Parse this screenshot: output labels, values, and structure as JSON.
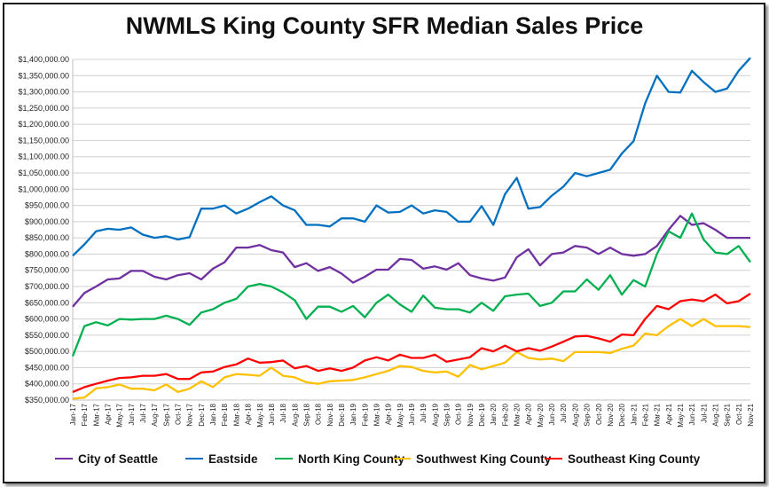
{
  "chart_data": {
    "type": "line",
    "title": "NWMLS King County SFR Median Sales Price",
    "ylim": [
      350000,
      1400000
    ],
    "ytick_step": 50000,
    "grid": "horizontal",
    "legend_position": "bottom",
    "categories": [
      "Jan-17",
      "Feb-17",
      "Mar-17",
      "Apr-17",
      "May-17",
      "Jun-17",
      "Jul-17",
      "Aug-17",
      "Sep-17",
      "Oct-17",
      "Nov-17",
      "Dec-17",
      "Jan-18",
      "Feb-18",
      "Mar-18",
      "Apr-18",
      "May-18",
      "Jun-18",
      "Jul-18",
      "Aug-18",
      "Sep-18",
      "Oct-18",
      "Nov-18",
      "Dec-18",
      "Jan-19",
      "Feb-19",
      "Mar-19",
      "Apr-19",
      "May-19",
      "Jun-19",
      "Jul-19",
      "Aug-19",
      "Sep-19",
      "Oct-19",
      "Nov-19",
      "Dec-19",
      "Jan-20",
      "Feb-20",
      "Mar-20",
      "Apr-20",
      "May-20",
      "Jun-20",
      "Jul-20",
      "Aug-20",
      "Sep-20",
      "Oct-20",
      "Nov-20",
      "Dec-20",
      "Jan-21",
      "Feb-21",
      "Mar-21",
      "Apr-21",
      "May-21",
      "Jun-21",
      "Jul-21",
      "Aug-21",
      "Sep-21",
      "Oct-21",
      "Nov-21"
    ],
    "series": [
      {
        "name": "City of Seattle",
        "color": "#7030a0",
        "values": [
          638000,
          680000,
          700000,
          722000,
          725000,
          748000,
          748000,
          730000,
          722000,
          735000,
          741000,
          722000,
          755000,
          775000,
          820000,
          820000,
          828000,
          812000,
          805000,
          760000,
          772000,
          748000,
          760000,
          740000,
          712000,
          730000,
          752000,
          752000,
          785000,
          782000,
          755000,
          762000,
          752000,
          772000,
          735000,
          725000,
          718000,
          728000,
          790000,
          815000,
          765000,
          800000,
          805000,
          825000,
          820000,
          800000,
          820000,
          800000,
          795000,
          800000,
          825000,
          875000,
          918000,
          890000,
          895000,
          875000,
          850000,
          850000,
          850000
        ]
      },
      {
        "name": "Eastside",
        "color": "#0070c0",
        "values": [
          795000,
          830000,
          870000,
          878000,
          875000,
          882000,
          860000,
          850000,
          855000,
          845000,
          852000,
          940000,
          940000,
          950000,
          925000,
          940000,
          960000,
          978000,
          950000,
          935000,
          890000,
          890000,
          885000,
          910000,
          910000,
          900000,
          950000,
          928000,
          930000,
          950000,
          925000,
          935000,
          930000,
          900000,
          900000,
          948000,
          890000,
          985000,
          1035000,
          940000,
          945000,
          980000,
          1008000,
          1050000,
          1040000,
          1050000,
          1060000,
          1110000,
          1148000,
          1265000,
          1350000,
          1300000,
          1298000,
          1365000,
          1330000,
          1300000,
          1310000,
          1365000,
          1405000
        ]
      },
      {
        "name": "North King County",
        "color": "#00b050",
        "values": [
          485000,
          578000,
          590000,
          580000,
          600000,
          598000,
          600000,
          600000,
          610000,
          600000,
          582000,
          620000,
          630000,
          650000,
          662000,
          700000,
          708000,
          700000,
          682000,
          658000,
          600000,
          638000,
          638000,
          622000,
          640000,
          605000,
          650000,
          675000,
          645000,
          622000,
          672000,
          635000,
          630000,
          630000,
          620000,
          650000,
          625000,
          670000,
          675000,
          678000,
          640000,
          650000,
          685000,
          685000,
          722000,
          690000,
          735000,
          675000,
          720000,
          700000,
          800000,
          870000,
          850000,
          925000,
          845000,
          805000,
          800000,
          825000,
          775000
        ]
      },
      {
        "name": "Southwest King County",
        "color": "#ffc000",
        "values": [
          354000,
          358000,
          386000,
          390000,
          398000,
          385000,
          385000,
          380000,
          398000,
          375000,
          385000,
          408000,
          390000,
          420000,
          430000,
          428000,
          425000,
          450000,
          425000,
          420000,
          405000,
          400000,
          408000,
          410000,
          412000,
          420000,
          430000,
          440000,
          455000,
          452000,
          440000,
          435000,
          438000,
          422000,
          458000,
          445000,
          455000,
          465000,
          498000,
          480000,
          475000,
          478000,
          470000,
          498000,
          498000,
          498000,
          495000,
          508000,
          518000,
          555000,
          550000,
          578000,
          600000,
          578000,
          600000,
          578000,
          578000,
          578000,
          575000
        ]
      },
      {
        "name": "Southeast King County",
        "color": "#ff0000",
        "values": [
          375000,
          390000,
          400000,
          410000,
          418000,
          420000,
          425000,
          425000,
          430000,
          415000,
          415000,
          435000,
          438000,
          452000,
          460000,
          478000,
          465000,
          467000,
          472000,
          448000,
          455000,
          440000,
          448000,
          440000,
          450000,
          472000,
          482000,
          472000,
          490000,
          480000,
          480000,
          490000,
          468000,
          475000,
          482000,
          510000,
          500000,
          518000,
          500000,
          510000,
          502000,
          515000,
          530000,
          546000,
          548000,
          540000,
          530000,
          552000,
          550000,
          600000,
          640000,
          630000,
          655000,
          660000,
          655000,
          675000,
          648000,
          655000,
          678000
        ]
      }
    ]
  }
}
